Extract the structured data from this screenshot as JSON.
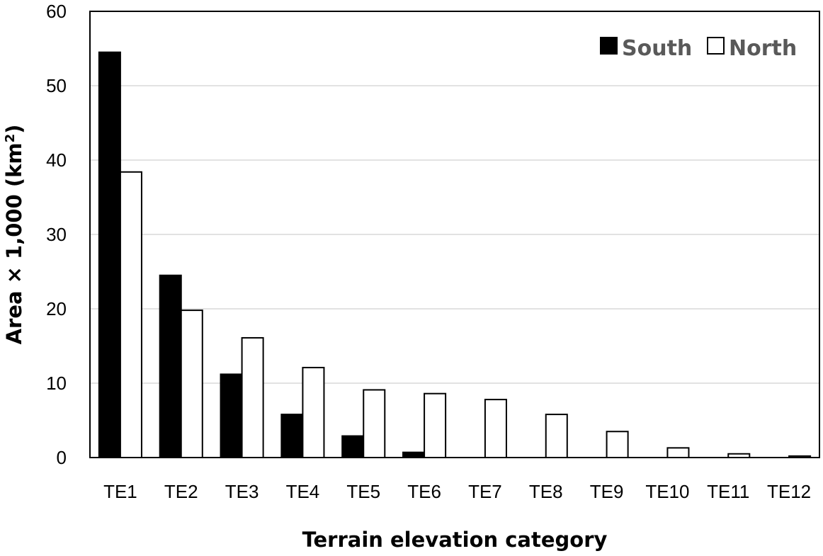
{
  "chart_data": {
    "type": "bar",
    "title": "",
    "xlabel": "Terrain elevation category",
    "ylabel_prefix": "Area × 1,000 (km",
    "ylabel_superscript": "2",
    "ylabel_suffix": ")",
    "ylim": [
      0,
      60
    ],
    "yticks": [
      0,
      10,
      20,
      30,
      40,
      50,
      60
    ],
    "grid": true,
    "legend_position": "top-right",
    "categories": [
      "TE1",
      "TE2",
      "TE3",
      "TE4",
      "TE5",
      "TE6",
      "TE7",
      "TE8",
      "TE9",
      "TE10",
      "TE11",
      "TE12"
    ],
    "series": [
      {
        "name": "South",
        "color": "#000000",
        "values": [
          54.5,
          24.5,
          11.2,
          5.8,
          2.9,
          0.7,
          0,
          0,
          0,
          0,
          0,
          0
        ]
      },
      {
        "name": "North",
        "color": "#ffffff",
        "values": [
          38.4,
          19.8,
          16.1,
          12.1,
          9.1,
          8.6,
          7.8,
          5.8,
          3.5,
          1.3,
          0.5,
          0.2
        ]
      }
    ]
  }
}
